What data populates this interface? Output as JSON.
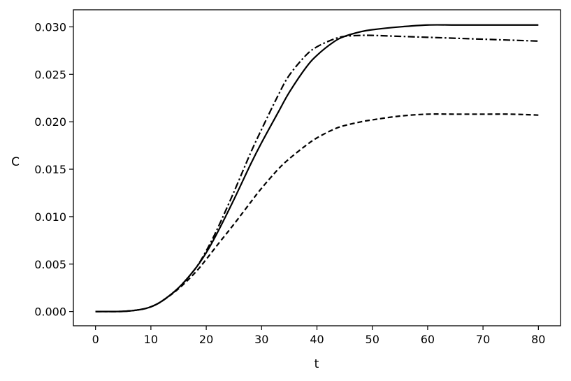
{
  "chart_data": {
    "type": "line",
    "title": "",
    "xlabel": "t",
    "ylabel": "C",
    "xlim": [
      -4,
      84
    ],
    "ylim": [
      -0.0015,
      0.0318
    ],
    "x_ticks": [
      0,
      10,
      20,
      30,
      40,
      50,
      60,
      70,
      80
    ],
    "x_tick_labels": [
      "0",
      "10",
      "20",
      "30",
      "40",
      "50",
      "60",
      "70",
      "80"
    ],
    "y_ticks": [
      0.0,
      0.005,
      0.01,
      0.015,
      0.02,
      0.025,
      0.03
    ],
    "y_tick_labels": [
      "0.000",
      "0.005",
      "0.010",
      "0.015",
      "0.020",
      "0.025",
      "0.030"
    ],
    "grid": false,
    "legend": "none",
    "x": [
      0,
      5,
      8,
      10,
      12,
      15,
      18,
      20,
      22,
      25,
      28,
      30,
      33,
      35,
      38,
      40,
      43,
      45,
      48,
      50,
      55,
      60,
      65,
      70,
      75,
      80
    ],
    "series": [
      {
        "style": "solid",
        "color": "#000000",
        "values": [
          0.0,
          2e-05,
          0.0002,
          0.0005,
          0.0011,
          0.0025,
          0.0045,
          0.0062,
          0.0083,
          0.0118,
          0.0155,
          0.0178,
          0.021,
          0.0231,
          0.0257,
          0.027,
          0.0284,
          0.029,
          0.0295,
          0.0297,
          0.03,
          0.0302,
          0.0302,
          0.0302,
          0.0302,
          0.0302
        ]
      },
      {
        "style": "dashed",
        "color": "#000000",
        "values": [
          0.0,
          2e-05,
          0.0002,
          0.0005,
          0.0011,
          0.0024,
          0.0041,
          0.0055,
          0.007,
          0.0092,
          0.0115,
          0.013,
          0.015,
          0.0161,
          0.0175,
          0.0183,
          0.0192,
          0.0196,
          0.02,
          0.0202,
          0.0206,
          0.0208,
          0.0208,
          0.0208,
          0.0208,
          0.0207
        ]
      },
      {
        "style": "dashdot",
        "color": "#000000",
        "values": [
          0.0,
          2e-05,
          0.0002,
          0.0005,
          0.0011,
          0.0025,
          0.0045,
          0.0064,
          0.0087,
          0.0126,
          0.0167,
          0.0192,
          0.0228,
          0.0249,
          0.027,
          0.0279,
          0.0287,
          0.029,
          0.0291,
          0.0291,
          0.029,
          0.0289,
          0.0288,
          0.0287,
          0.0286,
          0.0285
        ]
      }
    ]
  }
}
